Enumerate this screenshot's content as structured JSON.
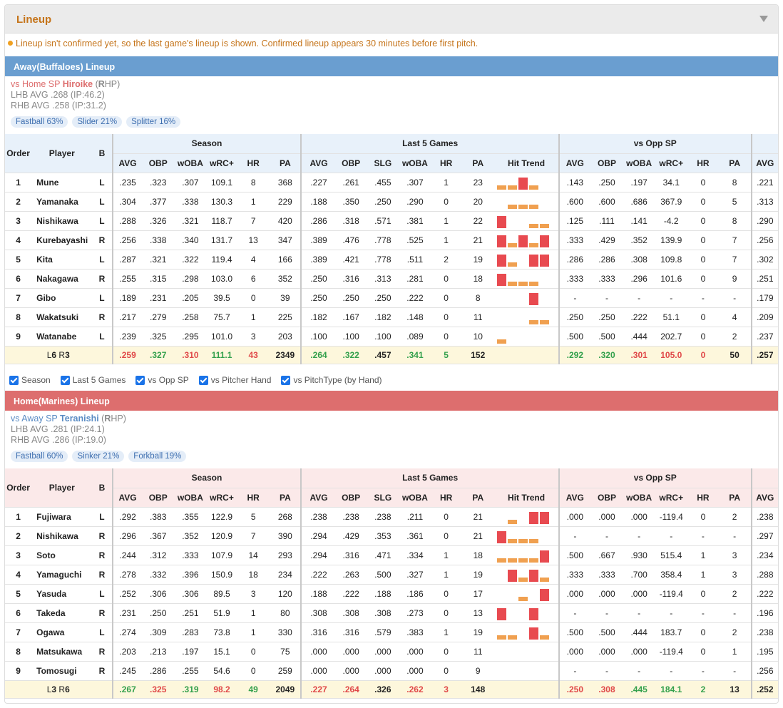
{
  "panel": {
    "title": "Lineup",
    "notice": "Lineup isn't confirmed yet, so the last game's lineup is shown. Confirmed lineup appears 30 minutes before first pitch."
  },
  "columns": {
    "groups": [
      "Season",
      "Last 5 Games",
      "vs Opp SP"
    ],
    "order": "Order",
    "player": "Player",
    "bats": "B",
    "season": [
      "AVG",
      "OBP",
      "wOBA",
      "wRC+",
      "HR",
      "PA"
    ],
    "last5": [
      "AVG",
      "OBP",
      "SLG",
      "wOBA",
      "HR",
      "PA",
      "Hit Trend"
    ],
    "opp": [
      "AVG",
      "OBP",
      "wOBA",
      "wRC+",
      "HR",
      "PA"
    ],
    "extra": "AVG"
  },
  "away": {
    "title": "Away(Buffaloes) Lineup",
    "sp_prefix": "vs Home SP ",
    "sp_name": "Hiroike",
    "sp_hand_open": " (",
    "sp_hand_bold": "R",
    "sp_hand_rest": "HP)",
    "lhb": "LHB AVG .268 (IP:46.2)",
    "rhb": "RHB AVG .258 (IP:31.2)",
    "pitches": [
      "Fastball 63%",
      "Slider 21%",
      "Splitter 16%"
    ],
    "rows": [
      [
        "1",
        "Mune",
        "L",
        ".235",
        ".323",
        ".307",
        "109.1",
        "8",
        "368",
        ".227",
        ".261",
        ".455",
        ".307",
        "1",
        "23",
        ".143",
        ".250",
        ".197",
        "34.1",
        "0",
        "8",
        ".221"
      ],
      [
        "2",
        "Yamanaka",
        "L",
        ".304",
        ".377",
        ".338",
        "130.3",
        "1",
        "229",
        ".188",
        ".350",
        ".250",
        ".290",
        "0",
        "20",
        ".600",
        ".600",
        ".686",
        "367.9",
        "0",
        "5",
        ".313"
      ],
      [
        "3",
        "Nishikawa",
        "L",
        ".288",
        ".326",
        ".321",
        "118.7",
        "7",
        "420",
        ".286",
        ".318",
        ".571",
        ".381",
        "1",
        "22",
        ".125",
        ".111",
        ".141",
        "-4.2",
        "0",
        "8",
        ".290"
      ],
      [
        "4",
        "Kurebayashi",
        "R",
        ".256",
        ".338",
        ".340",
        "131.7",
        "13",
        "347",
        ".389",
        ".476",
        ".778",
        ".525",
        "1",
        "21",
        ".333",
        ".429",
        ".352",
        "139.9",
        "0",
        "7",
        ".256"
      ],
      [
        "5",
        "Kita",
        "L",
        ".287",
        ".321",
        ".322",
        "119.4",
        "4",
        "166",
        ".389",
        ".421",
        ".778",
        ".511",
        "2",
        "19",
        ".286",
        ".286",
        ".308",
        "109.8",
        "0",
        "7",
        ".302"
      ],
      [
        "6",
        "Nakagawa",
        "R",
        ".255",
        ".315",
        ".298",
        "103.0",
        "6",
        "352",
        ".250",
        ".316",
        ".313",
        ".281",
        "0",
        "18",
        ".333",
        ".333",
        ".296",
        "101.6",
        "0",
        "9",
        ".251"
      ],
      [
        "7",
        "Gibo",
        "L",
        ".189",
        ".231",
        ".205",
        "39.5",
        "0",
        "39",
        ".250",
        ".250",
        ".250",
        ".222",
        "0",
        "8",
        "-",
        "-",
        "-",
        "-",
        "-",
        "-",
        ".179"
      ],
      [
        "8",
        "Wakatsuki",
        "R",
        ".217",
        ".279",
        ".258",
        "75.7",
        "1",
        "225",
        ".182",
        ".167",
        ".182",
        ".148",
        "0",
        "11",
        ".250",
        ".250",
        ".222",
        "51.1",
        "0",
        "4",
        ".209"
      ],
      [
        "9",
        "Watanabe",
        "L",
        ".239",
        ".325",
        ".295",
        "101.0",
        "3",
        "203",
        ".100",
        ".100",
        ".100",
        ".089",
        "0",
        "10",
        ".500",
        ".500",
        ".444",
        "202.7",
        "0",
        "2",
        ".237"
      ]
    ],
    "trends": [
      [
        "o",
        "o",
        "r",
        "o",
        ""
      ],
      [
        "",
        "o",
        "o",
        "o",
        ""
      ],
      [
        "r",
        "",
        "",
        "o",
        "o"
      ],
      [
        "r",
        "o",
        "r",
        "o",
        "r"
      ],
      [
        "r",
        "o",
        "",
        "r",
        "r"
      ],
      [
        "r",
        "o",
        "o",
        "o",
        ""
      ],
      [
        "",
        "",
        "",
        "r",
        ""
      ],
      [
        "",
        "",
        "",
        "o",
        "o"
      ],
      [
        "o",
        "",
        "",
        "",
        ""
      ]
    ],
    "total": {
      "label_a": "L",
      "label_a_n": "6",
      "label_b": " R",
      "label_b_n": "3",
      "values": [
        ".259",
        ".327",
        ".310",
        "111.1",
        "43",
        "2349",
        ".264",
        ".322",
        ".457",
        ".341",
        "5",
        "152",
        ".292",
        ".320",
        ".301",
        "105.0",
        "0",
        "50",
        ".257"
      ],
      "colors": [
        "red",
        "grn",
        "red",
        "grn",
        "red",
        "",
        "grn",
        "grn",
        "",
        "grn",
        "grn",
        "",
        "grn",
        "grn",
        "red",
        "red",
        "red",
        "",
        ""
      ]
    }
  },
  "filters": [
    "Season",
    "Last 5 Games",
    "vs Opp SP",
    "vs Pitcher Hand",
    "vs PitchType (by Hand)"
  ],
  "home": {
    "title": "Home(Marines) Lineup",
    "sp_prefix": "vs Away SP ",
    "sp_name": "Teranishi",
    "sp_hand_open": " (",
    "sp_hand_bold": "R",
    "sp_hand_rest": "HP)",
    "lhb": "LHB AVG .281 (IP:24.1)",
    "rhb": "RHB AVG .286 (IP:19.0)",
    "pitches": [
      "Fastball 60%",
      "Sinker 21%",
      "Forkball 19%"
    ],
    "rows": [
      [
        "1",
        "Fujiwara",
        "L",
        ".292",
        ".383",
        ".355",
        "122.9",
        "5",
        "268",
        ".238",
        ".238",
        ".238",
        ".211",
        "0",
        "21",
        ".000",
        ".000",
        ".000",
        "-119.4",
        "0",
        "2",
        ".238"
      ],
      [
        "2",
        "Nishikawa",
        "R",
        ".296",
        ".367",
        ".352",
        "120.9",
        "7",
        "390",
        ".294",
        ".429",
        ".353",
        ".361",
        "0",
        "21",
        "-",
        "-",
        "-",
        "-",
        "-",
        "-",
        ".297"
      ],
      [
        "3",
        "Soto",
        "R",
        ".244",
        ".312",
        ".333",
        "107.9",
        "14",
        "293",
        ".294",
        ".316",
        ".471",
        ".334",
        "1",
        "18",
        ".500",
        ".667",
        ".930",
        "515.4",
        "1",
        "3",
        ".234"
      ],
      [
        "4",
        "Yamaguchi",
        "R",
        ".278",
        ".332",
        ".396",
        "150.9",
        "18",
        "234",
        ".222",
        ".263",
        ".500",
        ".327",
        "1",
        "19",
        ".333",
        ".333",
        ".700",
        "358.4",
        "1",
        "3",
        ".288"
      ],
      [
        "5",
        "Yasuda",
        "L",
        ".252",
        ".306",
        ".306",
        "89.5",
        "3",
        "120",
        ".188",
        ".222",
        ".188",
        ".186",
        "0",
        "17",
        ".000",
        ".000",
        ".000",
        "-119.4",
        "0",
        "2",
        ".222"
      ],
      [
        "6",
        "Takeda",
        "R",
        ".231",
        ".250",
        ".251",
        "51.9",
        "1",
        "80",
        ".308",
        ".308",
        ".308",
        ".273",
        "0",
        "13",
        "-",
        "-",
        "-",
        "-",
        "-",
        "-",
        ".196"
      ],
      [
        "7",
        "Ogawa",
        "L",
        ".274",
        ".309",
        ".283",
        "73.8",
        "1",
        "330",
        ".316",
        ".316",
        ".579",
        ".383",
        "1",
        "19",
        ".500",
        ".500",
        ".444",
        "183.7",
        "0",
        "2",
        ".238"
      ],
      [
        "8",
        "Matsukawa",
        "R",
        ".203",
        ".213",
        ".197",
        "15.1",
        "0",
        "75",
        ".000",
        ".000",
        ".000",
        ".000",
        "0",
        "11",
        ".000",
        ".000",
        ".000",
        "-119.4",
        "0",
        "1",
        ".195"
      ],
      [
        "9",
        "Tomosugi",
        "R",
        ".245",
        ".286",
        ".255",
        "54.6",
        "0",
        "259",
        ".000",
        ".000",
        ".000",
        ".000",
        "0",
        "9",
        "-",
        "-",
        "-",
        "-",
        "-",
        "-",
        ".256"
      ]
    ],
    "trends": [
      [
        "",
        "o",
        "",
        "r",
        "r"
      ],
      [
        "r",
        "o",
        "o",
        "o",
        ""
      ],
      [
        "o",
        "o",
        "o",
        "o",
        "r"
      ],
      [
        "",
        "r",
        "o",
        "r",
        "o"
      ],
      [
        "",
        "",
        "o",
        "",
        "r"
      ],
      [
        "r",
        "",
        "",
        "r",
        ""
      ],
      [
        "o",
        "o",
        "",
        "r",
        "o"
      ],
      [
        "",
        "",
        "",
        "",
        ""
      ],
      [
        "",
        "",
        "",
        "",
        ""
      ]
    ],
    "total": {
      "label_a": "L",
      "label_a_n": "3",
      "label_b": " R",
      "label_b_n": "6",
      "values": [
        ".267",
        ".325",
        ".319",
        "98.2",
        "49",
        "2049",
        ".227",
        ".264",
        ".326",
        ".262",
        "3",
        "148",
        ".250",
        ".308",
        ".445",
        "184.1",
        "2",
        "13",
        ".252"
      ],
      "colors": [
        "grn",
        "red",
        "grn",
        "red",
        "grn",
        "",
        "red",
        "red",
        "",
        "red",
        "red",
        "",
        "red",
        "red",
        "grn",
        "grn",
        "grn",
        "",
        ""
      ]
    }
  }
}
